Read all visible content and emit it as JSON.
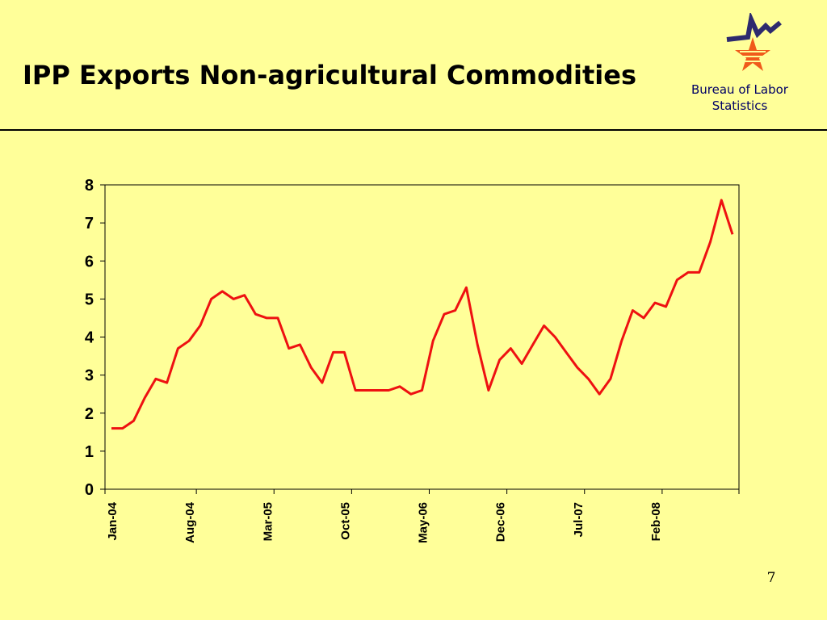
{
  "slide": {
    "title": "IPP Exports Non-agricultural Commodities",
    "org_name": "Bureau of Labor Statistics",
    "page_number": "7"
  },
  "colors": {
    "background": "#ffff99",
    "line": "#ee1111",
    "logo_blue": "#2d2a6e",
    "logo_orange": "#f05a1a"
  },
  "chart_data": {
    "type": "line",
    "title": "",
    "xlabel": "",
    "ylabel": "",
    "ylim": [
      0,
      8
    ],
    "yticks": [
      "0",
      "1",
      "2",
      "3",
      "4",
      "5",
      "6",
      "7",
      "8"
    ],
    "xtick_labels": [
      "Jan-04",
      "Aug-04",
      "Mar-05",
      "Oct-05",
      "May-06",
      "Dec-06",
      "Jul-07",
      "Feb-08"
    ],
    "grid": false,
    "legend": "none",
    "series": [
      {
        "values": [
          1.6,
          1.6,
          1.8,
          2.4,
          2.9,
          2.8,
          3.7,
          3.9,
          4.3,
          5.0,
          5.2,
          5.0,
          5.1,
          4.6,
          4.5,
          4.5,
          3.7,
          3.8,
          3.2,
          2.8,
          3.6,
          3.6,
          2.6,
          2.6,
          2.6,
          2.6,
          2.7,
          2.5,
          2.6,
          3.9,
          4.6,
          4.7,
          5.3,
          3.8,
          2.6,
          3.4,
          3.7,
          3.3,
          3.8,
          4.3,
          4.0,
          3.6,
          3.2,
          2.9,
          2.5,
          2.9,
          3.9,
          4.7,
          4.5,
          4.9,
          4.8,
          5.5,
          5.7,
          5.7,
          6.5,
          7.6,
          6.7
        ]
      }
    ]
  }
}
